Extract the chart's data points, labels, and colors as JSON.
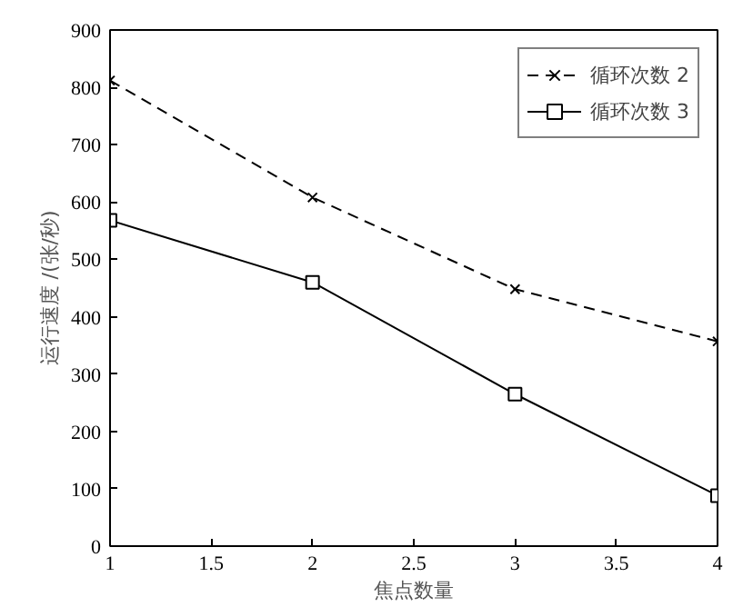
{
  "chart_data": {
    "type": "line",
    "xlabel": "焦点数量",
    "ylabel": "运行速度 /(张/秒)",
    "x": [
      1,
      2,
      3,
      4
    ],
    "series": [
      {
        "name": "循环次数 2",
        "color": "#000000",
        "values": [
          812,
          608,
          448,
          357
        ],
        "marker": "cross",
        "line_style": "dashed"
      },
      {
        "name": "循环次数 3",
        "color": "#000000",
        "values": [
          568,
          460,
          265,
          88
        ],
        "marker": "square",
        "line_style": "solid"
      }
    ],
    "xlim": [
      1,
      4
    ],
    "ylim": [
      0,
      900
    ],
    "xticks": [
      1,
      1.5,
      2,
      2.5,
      3,
      3.5,
      4
    ],
    "yticks": [
      0,
      100,
      200,
      300,
      400,
      500,
      600,
      700,
      800,
      900
    ],
    "grid": false,
    "legend": "top right"
  }
}
